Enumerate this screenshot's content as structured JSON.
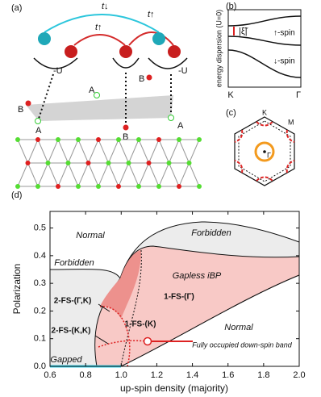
{
  "panel_a": {
    "label": "(a)",
    "hoppings": [
      "t↓",
      "t↑",
      "t↑"
    ],
    "interactions": [
      "-U",
      "-U"
    ],
    "sites": [
      "A",
      "B",
      "A",
      "B",
      "A",
      "B"
    ]
  },
  "panel_b": {
    "label": "(b)",
    "y_axis_label": "energy dispersion (U=0)",
    "gap_label": "|ξ̃|",
    "bands": [
      "↑-spin",
      "↓-spin"
    ],
    "x_labels": [
      "K",
      "Γ"
    ]
  },
  "panel_c": {
    "label": "(c)",
    "points": [
      "K",
      "M",
      "Γ"
    ]
  },
  "chart_data": {
    "type": "phase-diagram",
    "label": "(d)",
    "x_label": "up-spin density (majority)",
    "y_label": "Polarization",
    "xlim": [
      0.6,
      2.0
    ],
    "ylim": [
      0,
      0.56
    ],
    "xticks": [
      0.6,
      0.8,
      {
        "value": 1,
        "label": "1.0"
      },
      1.2,
      1.4,
      1.6,
      1.8,
      {
        "value": 2,
        "label": "2.0"
      }
    ],
    "yticks": [
      {
        "value": 0,
        "label": "0.0"
      },
      0.1,
      0.2,
      0.3,
      0.4,
      0.5
    ],
    "regions": [
      "Normal",
      "Forbidden",
      "Forbidden",
      "Gapless iBP",
      "1-FS-(Γ)",
      "2-FS-(Γ,K)",
      "2-FS-(K,K)",
      "1-FS-(K)",
      "Normal",
      "Fully occupied down-spin band",
      "Gapped"
    ]
  }
}
